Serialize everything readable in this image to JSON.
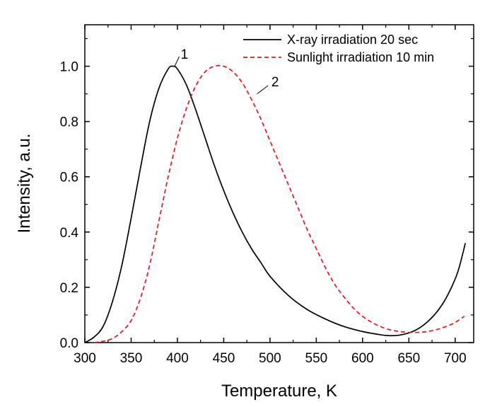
{
  "chart_data": {
    "type": "line",
    "xlabel": "Temperature, K",
    "ylabel": "Intensity, a.u.",
    "xlim": [
      300,
      720
    ],
    "ylim": [
      0,
      1.15
    ],
    "xticks": [
      "300",
      "350",
      "400",
      "450",
      "500",
      "550",
      "600",
      "650",
      "700"
    ],
    "yticks": [
      "0.0",
      "0.2",
      "0.4",
      "0.6",
      "0.8",
      "1.0"
    ],
    "legend_position": "top-right",
    "series": [
      {
        "name": "X-ray irradiation 20 sec",
        "color": "#000000",
        "style": "solid",
        "x": [
          300,
          310,
          320,
          330,
          340,
          350,
          360,
          370,
          380,
          390,
          395,
          400,
          410,
          420,
          430,
          440,
          450,
          460,
          470,
          480,
          490,
          500,
          520,
          540,
          560,
          580,
          600,
          620,
          630,
          640,
          650,
          660,
          670,
          680,
          690,
          700,
          705,
          711
        ],
        "y": [
          0.0,
          0.02,
          0.06,
          0.15,
          0.28,
          0.45,
          0.63,
          0.8,
          0.92,
          0.99,
          1.0,
          0.99,
          0.93,
          0.84,
          0.74,
          0.64,
          0.55,
          0.47,
          0.4,
          0.34,
          0.29,
          0.24,
          0.17,
          0.12,
          0.085,
          0.058,
          0.04,
          0.028,
          0.025,
          0.027,
          0.035,
          0.05,
          0.075,
          0.11,
          0.16,
          0.23,
          0.28,
          0.36
        ]
      },
      {
        "name": "Sunlight irradiation 10 min",
        "color": "#e8141e",
        "style": "dashed",
        "x": [
          310,
          320,
          330,
          340,
          350,
          360,
          370,
          380,
          390,
          400,
          410,
          420,
          430,
          440,
          450,
          460,
          470,
          480,
          490,
          500,
          510,
          520,
          530,
          540,
          550,
          560,
          570,
          580,
          590,
          600,
          610,
          620,
          630,
          640,
          650,
          660,
          670,
          680,
          690,
          700,
          710
        ],
        "y": [
          0.0,
          0.005,
          0.015,
          0.04,
          0.08,
          0.16,
          0.28,
          0.44,
          0.6,
          0.74,
          0.85,
          0.93,
          0.98,
          1.0,
          1.0,
          0.98,
          0.94,
          0.88,
          0.81,
          0.73,
          0.65,
          0.57,
          0.49,
          0.41,
          0.34,
          0.27,
          0.21,
          0.165,
          0.125,
          0.095,
          0.073,
          0.057,
          0.046,
          0.04,
          0.037,
          0.037,
          0.04,
          0.047,
          0.058,
          0.073,
          0.095
        ]
      }
    ],
    "annotations": [
      {
        "text": "1",
        "x": 402,
        "y": 1.035
      },
      {
        "text": "2",
        "x": 500,
        "y": 0.935
      }
    ]
  }
}
